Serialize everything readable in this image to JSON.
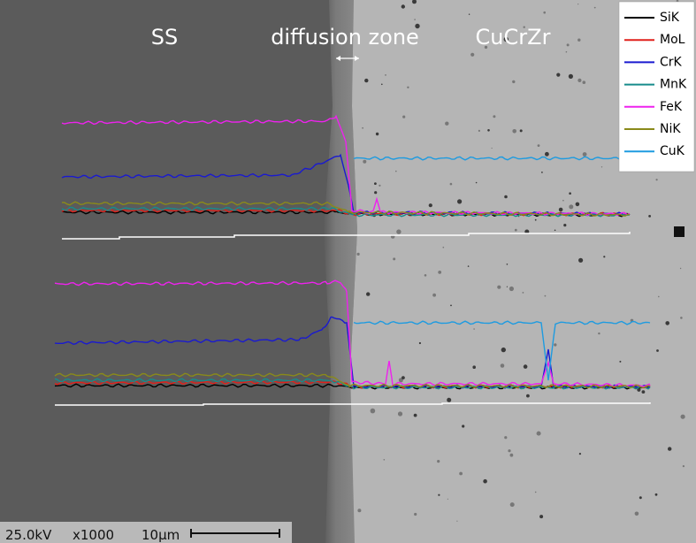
{
  "labels": {
    "left": "SS",
    "middle": "diffusion zone",
    "right": "CuCrZr"
  },
  "legend": [
    {
      "name": "SiK",
      "color": "#000000"
    },
    {
      "name": "MoL",
      "color": "#e0201b"
    },
    {
      "name": "CrK",
      "color": "#1a1ad0"
    },
    {
      "name": "MnK",
      "color": "#178c8c"
    },
    {
      "name": "FeK",
      "color": "#ee22ee"
    },
    {
      "name": "NiK",
      "color": "#8a8a1a"
    },
    {
      "name": "CuK",
      "color": "#1e9be0"
    }
  ],
  "footer": {
    "voltage": "25.0kV",
    "magnification": "x1000",
    "scale": "10μm"
  }
}
